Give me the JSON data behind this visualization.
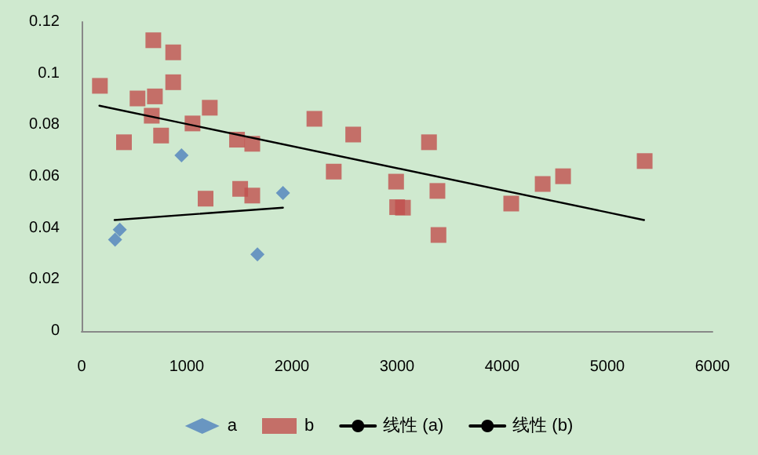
{
  "chart_data": {
    "type": "scatter",
    "xlim": [
      0,
      6000
    ],
    "xticks": [
      0,
      1000,
      2000,
      3000,
      4000,
      5000,
      6000
    ],
    "ylim": [
      0,
      0.12
    ],
    "yticks": [
      0,
      0.02,
      0.04,
      0.06,
      0.08,
      0.1,
      0.12
    ],
    "grid": false,
    "legend": "bottom",
    "series": [
      {
        "name": "a",
        "marker": "diamond",
        "color": "#4f81bd",
        "x": [
          318,
          363,
          950,
          1672,
          1915
        ],
        "values": [
          0.0355,
          0.0394,
          0.0682,
          0.0298,
          0.0536
        ]
      },
      {
        "name": "b",
        "marker": "square",
        "color": "#c0504d",
        "x": [
          174,
          403,
          532,
          682,
          697,
          667,
          756,
          871,
          871,
          1055,
          1219,
          1179,
          1478,
          1623,
          1508,
          1623,
          2214,
          2398,
          2583,
          3304,
          2991,
          3001,
          3056,
          3384,
          3394,
          4086,
          4385,
          4579,
          5355
        ],
        "values": [
          0.0952,
          0.0733,
          0.0903,
          0.1129,
          0.0911,
          0.0836,
          0.0759,
          0.1082,
          0.0966,
          0.0806,
          0.0867,
          0.0514,
          0.0743,
          0.0727,
          0.0552,
          0.0526,
          0.0824,
          0.0619,
          0.0763,
          0.0733,
          0.058,
          0.0481,
          0.0479,
          0.0544,
          0.0373,
          0.0495,
          0.0571,
          0.0601,
          0.066
        ]
      },
      {
        "name": "线性 (a)",
        "type": "line",
        "marker": "none",
        "line_style": "solid",
        "color": "#000000",
        "x": [
          313,
          1915
        ],
        "values": [
          0.0431,
          0.0479
        ]
      },
      {
        "name": "线性 (b)",
        "type": "line",
        "marker": "none",
        "line_style": "solid",
        "color": "#000000",
        "x": [
          169,
          5349
        ],
        "values": [
          0.0875,
          0.0431
        ]
      }
    ]
  }
}
